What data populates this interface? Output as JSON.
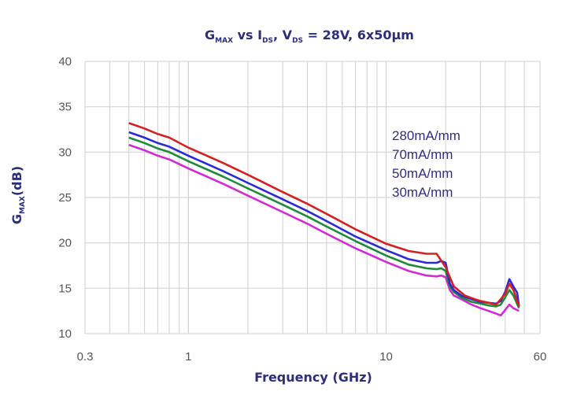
{
  "chart_data": {
    "type": "line",
    "title": {
      "parts": [
        {
          "text": "G",
          "sub": "MAX"
        },
        {
          "text": " vs I",
          "sub": "DS"
        },
        {
          "text": ", V",
          "sub": "DS"
        },
        {
          "text": " = 28V, 6x50µm",
          "sub": ""
        }
      ]
    },
    "xlabel": "Frequency (GHz)",
    "ylabel": {
      "text": "G",
      "sub": "MAX",
      "suffix": "(dB)"
    },
    "x_scale": "log",
    "xlim": [
      0.3,
      60
    ],
    "ylim": [
      10,
      40
    ],
    "x_ticks": [
      {
        "value": 0.3,
        "label": "0.3"
      },
      {
        "value": 1,
        "label": "1"
      },
      {
        "value": 10,
        "label": "10"
      },
      {
        "value": 60,
        "label": "60"
      }
    ],
    "y_ticks": [
      {
        "value": 10,
        "label": "10"
      },
      {
        "value": 15,
        "label": "15"
      },
      {
        "value": 20,
        "label": "20"
      },
      {
        "value": 25,
        "label": "25"
      },
      {
        "value": 30,
        "label": "30"
      },
      {
        "value": 35,
        "label": "35"
      },
      {
        "value": 40,
        "label": "40"
      }
    ],
    "grid": true,
    "legend_position": "upper-right",
    "series": [
      {
        "name": "280mA/mm",
        "color": "#d42020",
        "points": [
          [
            0.5,
            33.2
          ],
          [
            0.6,
            32.6
          ],
          [
            0.7,
            32.0
          ],
          [
            0.8,
            31.6
          ],
          [
            1.0,
            30.5
          ],
          [
            1.5,
            28.8
          ],
          [
            2,
            27.5
          ],
          [
            3,
            25.6
          ],
          [
            4,
            24.3
          ],
          [
            5,
            23.2
          ],
          [
            7,
            21.5
          ],
          [
            10,
            19.9
          ],
          [
            13,
            19.1
          ],
          [
            16,
            18.8
          ],
          [
            18,
            18.8
          ],
          [
            20,
            17.3
          ],
          [
            22,
            15.2
          ],
          [
            25,
            14.2
          ],
          [
            28,
            13.8
          ],
          [
            30,
            13.6
          ],
          [
            33,
            13.4
          ],
          [
            36,
            13.2
          ],
          [
            38,
            13.8
          ],
          [
            40,
            14.4
          ],
          [
            42,
            15.5
          ],
          [
            44,
            14.8
          ],
          [
            47,
            13.0
          ]
        ]
      },
      {
        "name": "70mA/mm",
        "color": "#2a2ad6",
        "points": [
          [
            0.5,
            32.2
          ],
          [
            0.6,
            31.6
          ],
          [
            0.7,
            31.0
          ],
          [
            0.8,
            30.6
          ],
          [
            1.0,
            29.6
          ],
          [
            1.5,
            27.9
          ],
          [
            2,
            26.6
          ],
          [
            3,
            24.8
          ],
          [
            4,
            23.5
          ],
          [
            5,
            22.4
          ],
          [
            7,
            20.7
          ],
          [
            10,
            19.2
          ],
          [
            13,
            18.2
          ],
          [
            16,
            17.8
          ],
          [
            18,
            17.8
          ],
          [
            19,
            18.0
          ],
          [
            20,
            17.8
          ],
          [
            21,
            15.5
          ],
          [
            22,
            14.8
          ],
          [
            24,
            14.2
          ],
          [
            27,
            13.8
          ],
          [
            30,
            13.5
          ],
          [
            33,
            13.4
          ],
          [
            36,
            13.3
          ],
          [
            38,
            13.6
          ],
          [
            40,
            14.6
          ],
          [
            42,
            16.0
          ],
          [
            44,
            15.2
          ],
          [
            46,
            14.5
          ],
          [
            47,
            13.0
          ]
        ]
      },
      {
        "name": "50mA/mm",
        "color": "#1f8a3a",
        "points": [
          [
            0.5,
            31.6
          ],
          [
            0.6,
            31.0
          ],
          [
            0.7,
            30.4
          ],
          [
            0.8,
            30.0
          ],
          [
            1.0,
            29.0
          ],
          [
            1.5,
            27.3
          ],
          [
            2,
            26.0
          ],
          [
            3,
            24.2
          ],
          [
            4,
            22.9
          ],
          [
            5,
            21.8
          ],
          [
            7,
            20.2
          ],
          [
            10,
            18.6
          ],
          [
            13,
            17.6
          ],
          [
            16,
            17.2
          ],
          [
            18,
            17.1
          ],
          [
            19,
            17.2
          ],
          [
            20,
            16.9
          ],
          [
            21,
            15.2
          ],
          [
            22,
            14.6
          ],
          [
            24,
            14.0
          ],
          [
            27,
            13.5
          ],
          [
            30,
            13.3
          ],
          [
            33,
            13.1
          ],
          [
            36,
            13.0
          ],
          [
            38,
            13.2
          ],
          [
            40,
            14.0
          ],
          [
            42,
            14.8
          ],
          [
            44,
            14.2
          ],
          [
            47,
            12.8
          ]
        ]
      },
      {
        "name": "30mA/mm",
        "color": "#d42ad4",
        "points": [
          [
            0.5,
            30.8
          ],
          [
            0.6,
            30.2
          ],
          [
            0.7,
            29.6
          ],
          [
            0.8,
            29.2
          ],
          [
            1.0,
            28.2
          ],
          [
            1.5,
            26.5
          ],
          [
            2,
            25.2
          ],
          [
            3,
            23.4
          ],
          [
            4,
            22.1
          ],
          [
            5,
            21.0
          ],
          [
            7,
            19.4
          ],
          [
            10,
            17.9
          ],
          [
            13,
            16.9
          ],
          [
            16,
            16.4
          ],
          [
            18,
            16.3
          ],
          [
            19,
            16.4
          ],
          [
            20,
            16.2
          ],
          [
            21,
            14.8
          ],
          [
            22,
            14.2
          ],
          [
            24,
            13.8
          ],
          [
            27,
            13.2
          ],
          [
            30,
            12.8
          ],
          [
            33,
            12.5
          ],
          [
            36,
            12.2
          ],
          [
            38,
            12.0
          ],
          [
            40,
            12.6
          ],
          [
            42,
            13.2
          ],
          [
            44,
            12.8
          ],
          [
            47,
            12.5
          ]
        ]
      }
    ]
  }
}
